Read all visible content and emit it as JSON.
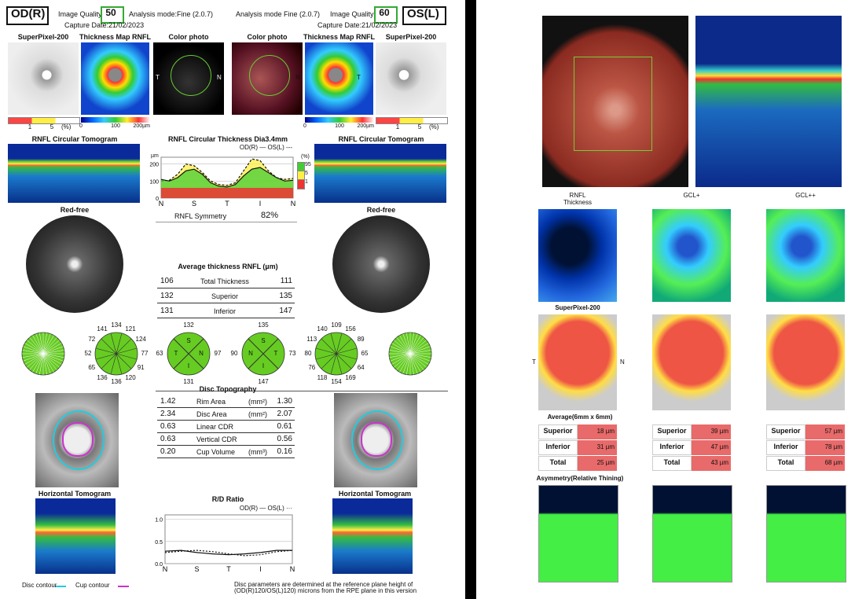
{
  "od_header": {
    "eye": "OD(R)",
    "quality_label": "Image Quality",
    "quality": 50,
    "mode": "Analysis mode:Fine (2.0.7)",
    "date": "Capture Date:21/02/2023"
  },
  "os_header": {
    "eye": "OS(L)",
    "quality_label": "Image Quality",
    "quality": 60,
    "mode": "Analysis mode Fine (2.0.7)",
    "date": "Capture Date:21/02/2023"
  },
  "top_panels": [
    "SuperPixel-200",
    "Thickness Map RNFL",
    "Color photo",
    "Color photo",
    "Thickness Map RNFL",
    "SuperPixel-200"
  ],
  "superpixel_scales": [
    {
      "ticks": [
        1,
        5
      ],
      "unit": "(%)"
    },
    {
      "ticks": [
        1,
        5
      ],
      "unit": "(%)"
    }
  ],
  "thickness_scales": [
    {
      "ticks": [
        0,
        100
      ],
      "end": "200µm"
    },
    {
      "ticks": [
        0,
        100
      ],
      "end": "200µm"
    }
  ],
  "photo_sides": [
    [
      "T",
      "N"
    ],
    [
      "N",
      "T"
    ]
  ],
  "circular_tomograms": [
    "RNFL Circular Tomogram",
    "RNFL Circular Tomogram"
  ],
  "rnfl_plot": {
    "title": "RNFL Circular Thickness Dia3.4mm",
    "legend": "OD(R) — OS(L) ---",
    "unit": "µm",
    "ylim": [
      0,
      240
    ],
    "yticks": [
      0,
      100,
      200
    ],
    "categories": [
      "N",
      "S",
      "T",
      "I",
      "N"
    ],
    "pct_legend": {
      "unit": "(%)",
      "levels": [
        95,
        5,
        1
      ]
    },
    "od": [
      110,
      100,
      120,
      160,
      170,
      140,
      90,
      70,
      65,
      80,
      130,
      170,
      180,
      150,
      120,
      100,
      105
    ],
    "os": [
      100,
      105,
      140,
      200,
      190,
      150,
      100,
      80,
      75,
      90,
      160,
      230,
      220,
      160,
      120,
      110,
      115
    ]
  },
  "symmetry": {
    "label": "RNFL Symmetry",
    "value": "82%"
  },
  "red_free": [
    "Red-free",
    "Red-free"
  ],
  "avg_rnfl": {
    "title": "Average thickness RNFL (µm)",
    "rows": [
      [
        106,
        "Total Thickness",
        111
      ],
      [
        132,
        "Superior",
        135
      ],
      [
        131,
        "Inferior",
        147
      ]
    ]
  },
  "od_clock": [
    134,
    121,
    124,
    77,
    91,
    120,
    136,
    136,
    65,
    52,
    72,
    141
  ],
  "od_quadrant": {
    "labels": [
      "S",
      "N",
      "I",
      "T"
    ],
    "values": [
      132,
      97,
      131,
      63
    ]
  },
  "os_quadrant": {
    "labels": [
      "S",
      "T",
      "I",
      "N"
    ],
    "values": [
      135,
      73,
      147,
      90
    ]
  },
  "os_clock": [
    109,
    156,
    89,
    65,
    64,
    169,
    154,
    118,
    76,
    80,
    113,
    140
  ],
  "disc": {
    "title": "Disc Topography",
    "rows": [
      [
        "1.42",
        "Rim Area",
        "(mm²)",
        "1.30"
      ],
      [
        "2.34",
        "Disc Area",
        "(mm²)",
        "2.07"
      ],
      [
        "0.63",
        "Linear CDR",
        "",
        "0.61"
      ],
      [
        "0.63",
        "Vertical CDR",
        "",
        "0.56"
      ],
      [
        "0.20",
        "Cup Volume",
        "(mm³)",
        "0.16"
      ]
    ]
  },
  "horizontal_tomograms": [
    "Horizontal Tomogram",
    "Horizontal Tomogram"
  ],
  "rd_plot": {
    "title": "R/D Ratio",
    "legend": "OD(R) — OS(L) ···",
    "ylim": [
      0,
      1.1
    ],
    "yticks": [
      {
        "value": 0,
        "label": "0.0"
      },
      {
        "value": 0.5,
        "label": "0.5"
      },
      {
        "value": 1,
        "label": "1.0"
      }
    ],
    "categories": [
      "N",
      "S",
      "T",
      "I",
      "N"
    ],
    "od": [
      0.28,
      0.3,
      0.25,
      0.22,
      0.2,
      0.22,
      0.25,
      0.3,
      0.3
    ],
    "os": [
      0.25,
      0.28,
      0.3,
      0.27,
      0.22,
      0.18,
      0.2,
      0.27,
      0.3
    ]
  },
  "contour_legend": [
    "Disc contour",
    "Cup contour"
  ],
  "footnote": "Disc parameters are determined at the reference plane height of (OD(R)120/OS(L)120) microns from the RPE plane in this version",
  "gcc": {
    "columns": [
      "RNFL Thickness",
      "GCL+",
      "GCL++"
    ],
    "superpixel": "SuperPixel-200",
    "sides": [
      "T",
      "N"
    ],
    "average_title": "Average(6mm x 6mm)",
    "row_labels": [
      "Superior",
      "Inferior",
      "Total"
    ],
    "values": [
      [
        "18 µm",
        "31 µm",
        "25 µm"
      ],
      [
        "39 µm",
        "47 µm",
        "43 µm"
      ],
      [
        "57 µm",
        "78 µm",
        "68 µm"
      ]
    ],
    "asymmetry": "Asymmetry(Relative Thining)"
  }
}
